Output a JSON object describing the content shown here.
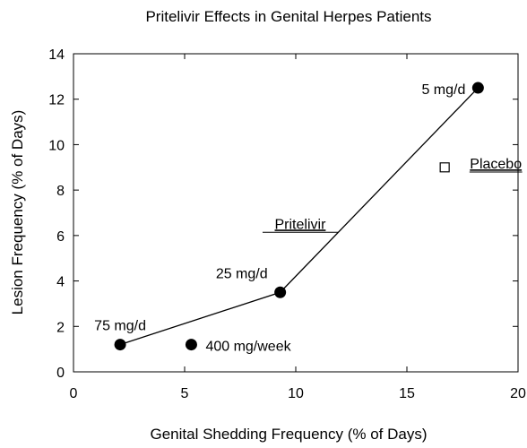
{
  "chart_data": {
    "type": "scatter",
    "title": "Pritelivir Effects in Genital Herpes Patients",
    "xlabel": "Genital Shedding Frequency (% of Days)",
    "ylabel": "Lesion Frequency (% of Days)",
    "xlim": [
      0,
      20
    ],
    "ylim": [
      0,
      14
    ],
    "xticks": [
      0,
      5,
      10,
      15,
      20
    ],
    "yticks": [
      0,
      2,
      4,
      6,
      8,
      10,
      12,
      14
    ],
    "grid": false,
    "series": [
      {
        "name": "Pritelivir",
        "marker": "filled-circle",
        "connected": true,
        "points": [
          {
            "x": 2.1,
            "y": 1.2,
            "label": "75 mg/d"
          },
          {
            "x": 9.3,
            "y": 3.5,
            "label": "25 mg/d"
          },
          {
            "x": 18.2,
            "y": 12.5,
            "label": "5 mg/d"
          }
        ]
      },
      {
        "name": "",
        "marker": "filled-circle",
        "connected": false,
        "points": [
          {
            "x": 5.3,
            "y": 1.2,
            "label": "400 mg/week"
          }
        ]
      },
      {
        "name": "Placebo",
        "marker": "open-square",
        "connected": false,
        "points": [
          {
            "x": 16.7,
            "y": 9.0,
            "label": ""
          }
        ]
      }
    ],
    "annotations": [
      {
        "text": "Pritelivir",
        "underline": true,
        "x": 10.2,
        "y": 6.3
      },
      {
        "text": "Placebo",
        "underline": true,
        "x": 19.0,
        "y": 8.95
      }
    ],
    "colors": {
      "ink": "#000000",
      "background": "#ffffff"
    }
  }
}
